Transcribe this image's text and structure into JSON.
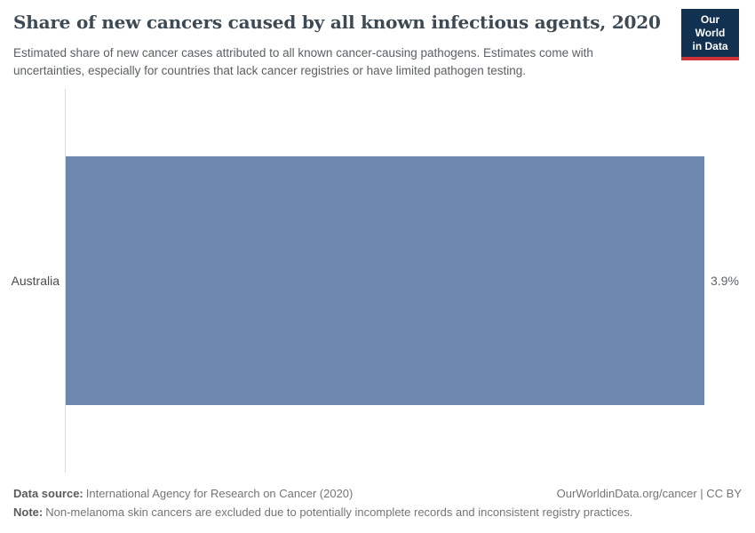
{
  "header": {
    "title": "Share of new cancers caused by all known infectious agents, 2020",
    "subtitle": "Estimated share of new cancer cases attributed to all known cancer-causing pathogens. Estimates come with uncertainties, especially for countries that lack cancer registries or have limited pathogen testing."
  },
  "logo": {
    "line1": "Our World",
    "line2": "in Data"
  },
  "chart_data": {
    "type": "bar",
    "orientation": "horizontal",
    "title": "Share of new cancers caused by all known infectious agents, 2020",
    "categories": [
      "Australia"
    ],
    "values": [
      3.9
    ],
    "value_labels": [
      "3.9%"
    ],
    "unit": "%",
    "xlim": [
      0,
      3.9
    ],
    "grid": false,
    "legend": false,
    "bar_color": "#6e87af"
  },
  "footer": {
    "source_label": "Data source:",
    "source_text": "International Agency for Research on Cancer (2020)",
    "credit": "OurWorldinData.org/cancer | CC BY",
    "note_label": "Note:",
    "note_text": "Non-melanoma skin cancers are excluded due to potentially incomplete records and inconsistent registry practices."
  },
  "colors": {
    "bar": "#6e87af",
    "logo_background": "#12304f",
    "logo_accent": "#d13239",
    "axis_line": "#dcdcdc"
  }
}
